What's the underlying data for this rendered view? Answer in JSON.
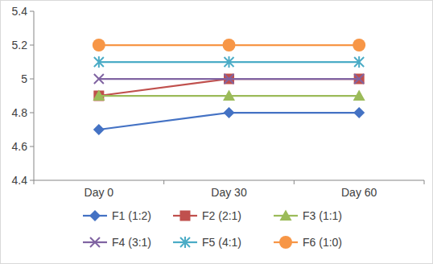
{
  "chart_data": {
    "type": "line",
    "categories": [
      "Day 0",
      "Day 30",
      "Day 60"
    ],
    "series": [
      {
        "name": "F1 (1:2)",
        "color": "#4472c4",
        "marker": "diamond",
        "values": [
          4.7,
          4.8,
          4.8
        ]
      },
      {
        "name": "F2 (2:1)",
        "color": "#c0504d",
        "marker": "square",
        "values": [
          4.9,
          5.0,
          5.0
        ]
      },
      {
        "name": "F3 (1:1)",
        "color": "#9bbb59",
        "marker": "triangle",
        "values": [
          4.9,
          4.9,
          4.9
        ]
      },
      {
        "name": "F4 (3:1)",
        "color": "#8064a2",
        "marker": "x",
        "values": [
          5.0,
          5.0,
          5.0
        ]
      },
      {
        "name": "F5 (4:1)",
        "color": "#4bacc6",
        "marker": "asterisk",
        "values": [
          5.1,
          5.1,
          5.1
        ]
      },
      {
        "name": "F6 (1:0)",
        "color": "#f79646",
        "marker": "circle",
        "values": [
          5.2,
          5.2,
          5.2
        ]
      }
    ],
    "ylim": [
      4.4,
      5.4
    ],
    "yticks": [
      4.4,
      4.6,
      4.8,
      5,
      5.2,
      5.4
    ],
    "grid": false,
    "legend": "bottom"
  }
}
